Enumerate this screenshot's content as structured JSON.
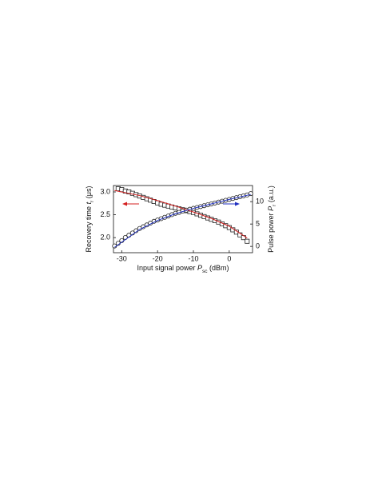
{
  "chart_data": {
    "type": "scatter",
    "xlabel": {
      "pre": "Input signal power ",
      "var": "P",
      "sub": "sc",
      "post": " (dBm)"
    },
    "ylabel": {
      "pre": "Recovery time ",
      "var": "t",
      "sub": "r",
      "post": " (μs)"
    },
    "y2label": {
      "pre": "Pulse power ",
      "var": "P",
      "sub": "r",
      "post": " (a.u.)"
    },
    "xlim": [
      -32.3,
      6.5
    ],
    "xticks": [
      -30,
      -20,
      -10,
      0
    ],
    "ylim": [
      1.67,
      3.14
    ],
    "yticks": [
      {
        "value": 2,
        "label": "2.0"
      },
      2.5,
      {
        "value": 3,
        "label": "3.0"
      }
    ],
    "y2lim": [
      -1.4,
      13.6
    ],
    "y2ticks": [
      0,
      5,
      10
    ],
    "series": [
      {
        "marker": "square",
        "color": "#222222",
        "axis": "y",
        "x": [
          -31,
          -30,
          -29,
          -28,
          -27,
          -26,
          -25,
          -24,
          -23,
          -22,
          -21,
          -20,
          -19,
          -18,
          -17,
          -16,
          -15,
          -14,
          -13,
          -12,
          -11,
          -10,
          -9,
          -8,
          -7,
          -6,
          -5,
          -4,
          -3,
          -2,
          -1,
          0,
          1,
          2,
          3,
          4,
          5
        ],
        "values": [
          3.07,
          3.05,
          3.02,
          3.0,
          2.97,
          2.94,
          2.91,
          2.88,
          2.85,
          2.82,
          2.79,
          2.76,
          2.73,
          2.71,
          2.69,
          2.67,
          2.65,
          2.63,
          2.61,
          2.59,
          2.57,
          2.55,
          2.52,
          2.49,
          2.46,
          2.43,
          2.4,
          2.37,
          2.34,
          2.3,
          2.26,
          2.22,
          2.17,
          2.12,
          2.06,
          2.0,
          1.92
        ]
      },
      {
        "marker": "circle",
        "color": "#222222",
        "axis": "y2",
        "x": [
          -32,
          -31,
          -30,
          -29,
          -28,
          -27,
          -26,
          -25,
          -24,
          -23,
          -22,
          -21,
          -20,
          -19,
          -18,
          -17,
          -16,
          -15,
          -14,
          -13,
          -12,
          -11,
          -10,
          -9,
          -8,
          -7,
          -6,
          -5,
          -4,
          -3,
          -2,
          -1,
          0,
          1,
          2,
          3,
          4,
          5,
          6
        ],
        "values": [
          0.1,
          0.7,
          1.3,
          2.0,
          2.5,
          3.0,
          3.5,
          4.0,
          4.4,
          4.8,
          5.2,
          5.6,
          5.9,
          6.2,
          6.5,
          6.8,
          7.1,
          7.4,
          7.6,
          7.9,
          8.1,
          8.3,
          8.5,
          8.7,
          8.9,
          9.1,
          9.3,
          9.5,
          9.7,
          9.9,
          10.1,
          10.3,
          10.5,
          10.7,
          10.9,
          11.1,
          11.3,
          11.5,
          11.8
        ]
      },
      {
        "marker": "line",
        "color": "#d42020",
        "axis": "y",
        "x": [
          -32,
          -25,
          -20,
          -15,
          -10,
          -5,
          0,
          5
        ],
        "values": [
          3.03,
          2.92,
          2.81,
          2.69,
          2.56,
          2.42,
          2.25,
          1.99
        ]
      },
      {
        "marker": "line",
        "color": "#2030c0",
        "axis": "y2",
        "x": [
          -32,
          -25,
          -20,
          -15,
          -10,
          -5,
          0,
          6
        ],
        "values": [
          -0.2,
          3.8,
          5.8,
          7.3,
          8.5,
          9.5,
          10.5,
          11.6
        ]
      }
    ]
  }
}
